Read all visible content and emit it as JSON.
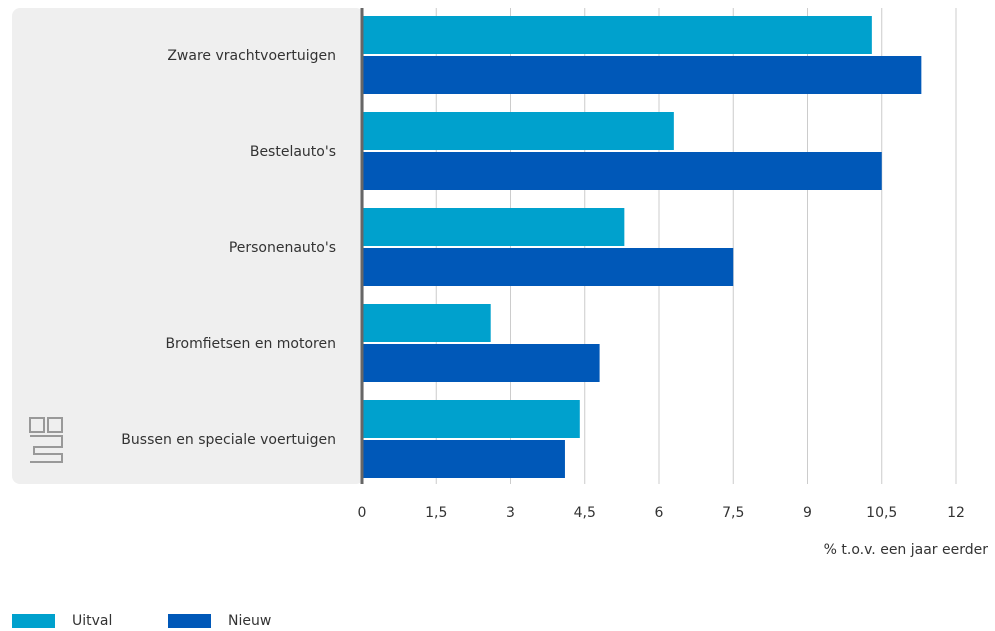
{
  "chart_data": {
    "type": "bar",
    "orientation": "horizontal",
    "categories": [
      "Zware vrachtvoertuigen",
      "Bestelauto's",
      "Personenauto's",
      "Bromfietsen en motoren",
      "Bussen en speciale voertuigen"
    ],
    "series": [
      {
        "name": "Uitval",
        "color": "#00a1cd",
        "values": [
          10.3,
          6.3,
          5.3,
          2.6,
          4.4
        ]
      },
      {
        "name": "Nieuw",
        "color": "#0058b8",
        "values": [
          11.3,
          10.5,
          7.5,
          4.8,
          4.1
        ]
      }
    ],
    "xlabel": "% t.o.v. een jaar eerder",
    "xlim": [
      0,
      12
    ],
    "xticks": [
      0,
      {
        "value": 1.5,
        "label": "1,5"
      },
      3,
      {
        "value": 4.5,
        "label": "4,5"
      },
      6,
      {
        "value": 7.5,
        "label": "7,5"
      },
      9,
      {
        "value": 10.5,
        "label": "10,5"
      },
      12
    ],
    "grid": true,
    "legend": "bottom-left"
  }
}
